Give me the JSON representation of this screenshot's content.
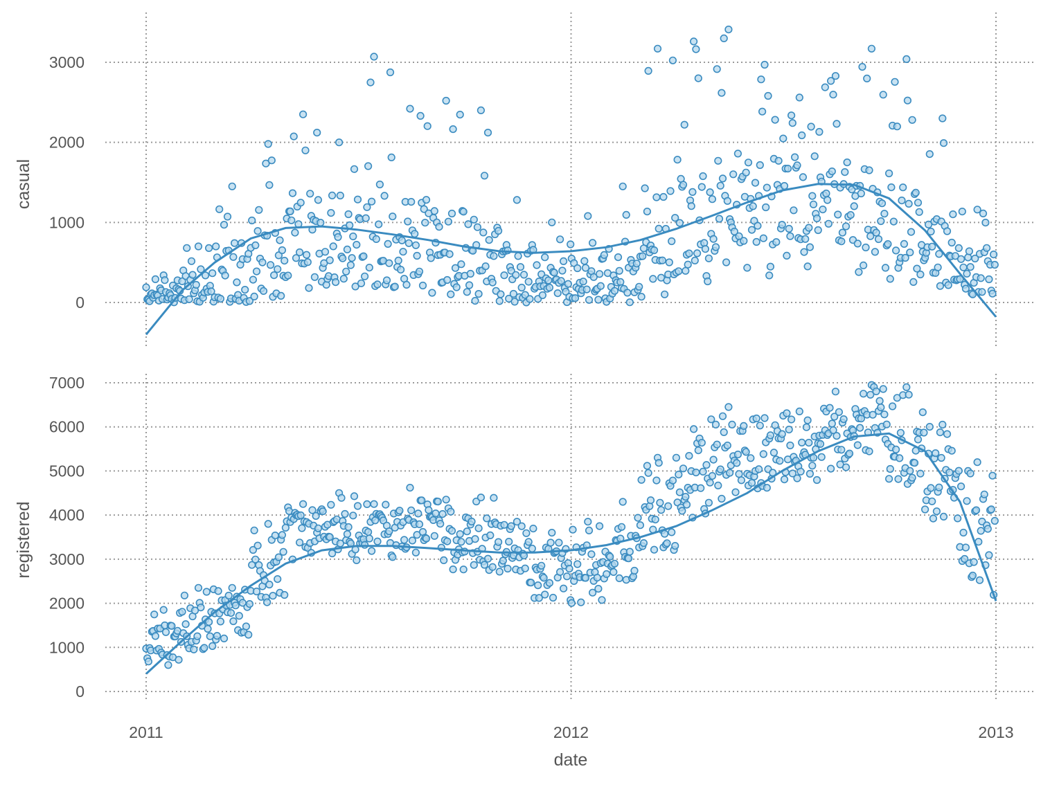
{
  "chart_data": {
    "type": "scatter",
    "colors": {
      "points": "#3a8bc0",
      "point_fill": "#b5d8ee",
      "trend": "#3a8bc0",
      "grid": "#999999",
      "text": "#555555"
    },
    "shared_x": {
      "label": "date",
      "ticks": [
        "2011",
        "2012",
        "2013"
      ],
      "range": [
        "2011-01-01",
        "2013-01-01"
      ]
    },
    "grid": true,
    "panels": [
      {
        "name": "casual",
        "ylabel": "casual",
        "yticks": [
          0,
          1000,
          2000,
          3000
        ],
        "ylim": [
          -500,
          3550
        ],
        "trend": [
          [
            "2011-01-01",
            -400
          ],
          [
            "2011-02-01",
            150
          ],
          [
            "2011-03-01",
            500
          ],
          [
            "2011-04-01",
            800
          ],
          [
            "2011-05-01",
            930
          ],
          [
            "2011-06-01",
            950
          ],
          [
            "2011-07-01",
            910
          ],
          [
            "2011-08-01",
            850
          ],
          [
            "2011-09-01",
            780
          ],
          [
            "2011-10-01",
            700
          ],
          [
            "2011-11-01",
            640
          ],
          [
            "2011-12-01",
            620
          ],
          [
            "2012-01-01",
            640
          ],
          [
            "2012-02-01",
            690
          ],
          [
            "2012-03-01",
            780
          ],
          [
            "2012-04-01",
            920
          ],
          [
            "2012-05-01",
            1080
          ],
          [
            "2012-06-01",
            1250
          ],
          [
            "2012-07-01",
            1400
          ],
          [
            "2012-08-01",
            1480
          ],
          [
            "2012-09-01",
            1470
          ],
          [
            "2012-10-01",
            1300
          ],
          [
            "2012-11-01",
            900
          ],
          [
            "2012-12-01",
            360
          ],
          [
            "2013-01-01",
            -180
          ]
        ],
        "months": [
          {
            "m": "2011-01",
            "base": 80,
            "spread": 120,
            "max": 340
          },
          {
            "m": "2011-02",
            "base": 150,
            "spread": 250,
            "max": 700
          },
          {
            "m": "2011-03",
            "base": 300,
            "spread": 450,
            "max": 1450
          },
          {
            "m": "2011-04",
            "base": 600,
            "spread": 600,
            "max": 1980
          },
          {
            "m": "2011-05",
            "base": 750,
            "spread": 650,
            "max": 2350
          },
          {
            "m": "2011-06",
            "base": 780,
            "spread": 600,
            "max": 2000
          },
          {
            "m": "2011-07",
            "base": 850,
            "spread": 650,
            "max": 3070
          },
          {
            "m": "2011-08",
            "base": 750,
            "spread": 600,
            "max": 2420
          },
          {
            "m": "2011-09",
            "base": 650,
            "spread": 550,
            "max": 2520
          },
          {
            "m": "2011-10",
            "base": 550,
            "spread": 550,
            "max": 2400
          },
          {
            "m": "2011-11",
            "base": 350,
            "spread": 400,
            "max": 1280
          },
          {
            "m": "2011-12",
            "base": 220,
            "spread": 250,
            "max": 1000
          },
          {
            "m": "2012-01",
            "base": 250,
            "spread": 300,
            "max": 1080
          },
          {
            "m": "2012-02",
            "base": 280,
            "spread": 300,
            "max": 1450
          },
          {
            "m": "2012-03",
            "base": 700,
            "spread": 700,
            "max": 3170
          },
          {
            "m": "2012-04",
            "base": 900,
            "spread": 700,
            "max": 3260
          },
          {
            "m": "2012-05",
            "base": 1000,
            "spread": 800,
            "max": 3410
          },
          {
            "m": "2012-06",
            "base": 1050,
            "spread": 750,
            "max": 2970
          },
          {
            "m": "2012-07",
            "base": 1150,
            "spread": 700,
            "max": 2560
          },
          {
            "m": "2012-08",
            "base": 1150,
            "spread": 650,
            "max": 2830
          },
          {
            "m": "2012-09",
            "base": 1050,
            "spread": 700,
            "max": 3170
          },
          {
            "m": "2012-10",
            "base": 900,
            "spread": 650,
            "max": 3040
          },
          {
            "m": "2012-11",
            "base": 600,
            "spread": 450,
            "max": 2300
          },
          {
            "m": "2012-12",
            "base": 400,
            "spread": 300,
            "max": 1160
          }
        ]
      },
      {
        "name": "registered",
        "ylabel": "registered",
        "yticks": [
          0,
          1000,
          2000,
          3000,
          4000,
          5000,
          6000,
          7000
        ],
        "ylim": [
          -400,
          7150
        ],
        "trend": [
          [
            "2011-01-01",
            400
          ],
          [
            "2011-02-01",
            1150
          ],
          [
            "2011-03-01",
            1800
          ],
          [
            "2011-04-01",
            2400
          ],
          [
            "2011-05-01",
            2900
          ],
          [
            "2011-06-01",
            3200
          ],
          [
            "2011-07-01",
            3300
          ],
          [
            "2011-08-01",
            3300
          ],
          [
            "2011-09-01",
            3250
          ],
          [
            "2011-10-01",
            3200
          ],
          [
            "2011-11-01",
            3150
          ],
          [
            "2011-12-01",
            3150
          ],
          [
            "2012-01-01",
            3200
          ],
          [
            "2012-02-01",
            3320
          ],
          [
            "2012-03-01",
            3500
          ],
          [
            "2012-04-01",
            3750
          ],
          [
            "2012-05-01",
            4100
          ],
          [
            "2012-06-01",
            4500
          ],
          [
            "2012-07-01",
            5000
          ],
          [
            "2012-08-01",
            5450
          ],
          [
            "2012-09-01",
            5780
          ],
          [
            "2012-10-01",
            5850
          ],
          [
            "2012-11-01",
            5450
          ],
          [
            "2012-12-01",
            4300
          ],
          [
            "2013-01-01",
            2050
          ]
        ],
        "months": [
          {
            "m": "2011-01",
            "base": 1050,
            "spread": 450,
            "max": 1850
          },
          {
            "m": "2011-02",
            "base": 1400,
            "spread": 450,
            "max": 2350
          },
          {
            "m": "2011-03",
            "base": 1650,
            "spread": 500,
            "max": 2350
          },
          {
            "m": "2011-04",
            "base": 2700,
            "spread": 700,
            "max": 3800
          },
          {
            "m": "2011-05",
            "base": 3400,
            "spread": 600,
            "max": 4250
          },
          {
            "m": "2011-06",
            "base": 3700,
            "spread": 600,
            "max": 4500
          },
          {
            "m": "2011-07",
            "base": 3500,
            "spread": 550,
            "max": 4250
          },
          {
            "m": "2011-08",
            "base": 3600,
            "spread": 600,
            "max": 4620
          },
          {
            "m": "2011-09",
            "base": 3400,
            "spread": 700,
            "max": 4350
          },
          {
            "m": "2011-10",
            "base": 3300,
            "spread": 650,
            "max": 4400
          },
          {
            "m": "2011-11",
            "base": 3000,
            "spread": 700,
            "max": 3850
          },
          {
            "m": "2011-12",
            "base": 2800,
            "spread": 700,
            "max": 3600
          },
          {
            "m": "2012-01",
            "base": 2700,
            "spread": 700,
            "max": 3850
          },
          {
            "m": "2012-02",
            "base": 3100,
            "spread": 700,
            "max": 4300
          },
          {
            "m": "2012-03",
            "base": 4000,
            "spread": 800,
            "max": 5300
          },
          {
            "m": "2012-04",
            "base": 4700,
            "spread": 800,
            "max": 5950
          },
          {
            "m": "2012-05",
            "base": 5100,
            "spread": 800,
            "max": 6450
          },
          {
            "m": "2012-06",
            "base": 5300,
            "spread": 700,
            "max": 6200
          },
          {
            "m": "2012-07",
            "base": 5300,
            "spread": 700,
            "max": 6350
          },
          {
            "m": "2012-08",
            "base": 5600,
            "spread": 650,
            "max": 6800
          },
          {
            "m": "2012-09",
            "base": 6000,
            "spread": 700,
            "max": 6950
          },
          {
            "m": "2012-10",
            "base": 5600,
            "spread": 900,
            "max": 6900
          },
          {
            "m": "2012-11",
            "base": 4700,
            "spread": 800,
            "max": 6050
          },
          {
            "m": "2012-12",
            "base": 3200,
            "spread": 1300,
            "max": 5200
          }
        ]
      }
    ]
  }
}
